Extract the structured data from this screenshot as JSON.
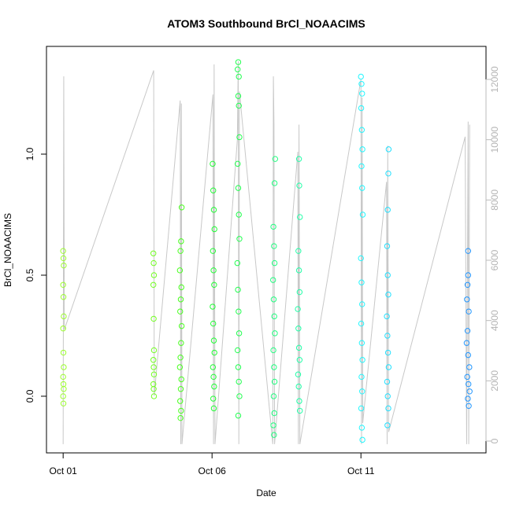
{
  "chart_data": {
    "type": "scatter",
    "title": "ATOM3 Southbound BrCl_NOAACIMS",
    "x_label": "Date",
    "y_label": "BrCl_NOAACIMS",
    "xlim": [
      0.44,
      15.2
    ],
    "xticks": [
      {
        "value": 1,
        "label": "Oct 01"
      },
      {
        "value": 6,
        "label": "Oct 06"
      },
      {
        "value": 11,
        "label": "Oct 11"
      }
    ],
    "ylim": [
      -0.234,
      1.445
    ],
    "yticks": [
      {
        "value": 0,
        "label": "0.0"
      },
      0.5,
      {
        "value": 1,
        "label": "1.0"
      }
    ],
    "y2lim": [
      -391,
      13096
    ],
    "y2ticks": [
      0,
      2000,
      4000,
      6000,
      8000,
      10000,
      12000
    ],
    "grid": false,
    "series": [
      {
        "color": "#9cff2e",
        "x": [
          1.0,
          1.01,
          1.02,
          1.0,
          1.01,
          1.02,
          1.0,
          1.01,
          1.02,
          1.0,
          1.01,
          1.02,
          1.0,
          1.01
        ],
        "values": [
          0.6,
          0.57,
          0.54,
          0.46,
          0.41,
          0.33,
          0.28,
          0.18,
          0.12,
          0.08,
          0.05,
          0.03,
          0.0,
          -0.03
        ]
      },
      {
        "color": "#72ff22",
        "x": [
          4.03,
          4.04,
          4.05,
          4.03,
          4.04,
          4.05,
          4.03,
          4.04,
          4.05,
          4.03,
          4.04,
          4.05
        ],
        "values": [
          0.59,
          0.55,
          0.5,
          0.46,
          0.32,
          0.19,
          0.15,
          0.12,
          0.09,
          0.05,
          0.03,
          0.0
        ]
      },
      {
        "color": "#48ff1e",
        "x": [
          4.98,
          4.96,
          4.94,
          4.92,
          4.97,
          4.95,
          4.93,
          4.98,
          4.96,
          4.94,
          4.92,
          4.97,
          4.95,
          4.93,
          4.96,
          4.94
        ],
        "values": [
          0.78,
          0.64,
          0.6,
          0.52,
          0.45,
          0.4,
          0.35,
          0.29,
          0.22,
          0.16,
          0.12,
          0.07,
          0.03,
          -0.02,
          -0.06,
          -0.09
        ]
      },
      {
        "color": "#22ff36",
        "x": [
          6.02,
          6.04,
          6.06,
          6.08,
          6.03,
          6.05,
          6.07,
          6.02,
          6.04,
          6.06,
          6.08,
          6.03,
          6.05,
          6.07,
          6.04,
          6.06
        ],
        "values": [
          0.96,
          0.85,
          0.77,
          0.69,
          0.6,
          0.52,
          0.46,
          0.37,
          0.3,
          0.23,
          0.18,
          0.12,
          0.08,
          0.04,
          -0.01,
          -0.05
        ]
      },
      {
        "color": "#22ff50",
        "x": [
          6.88,
          6.86,
          6.9,
          6.88,
          6.9,
          6.92,
          6.86,
          6.88,
          6.9,
          6.92,
          6.85,
          6.87,
          6.89,
          6.91,
          6.86,
          6.88,
          6.9,
          6.92,
          6.88
        ],
        "values": [
          1.38,
          1.35,
          1.32,
          1.24,
          1.2,
          1.07,
          0.96,
          0.86,
          0.75,
          0.65,
          0.55,
          0.44,
          0.35,
          0.26,
          0.19,
          0.12,
          0.06,
          0.0,
          -0.08
        ]
      },
      {
        "color": "#22ff80",
        "x": [
          8.12,
          8.1,
          8.06,
          8.08,
          8.1,
          8.05,
          8.07,
          8.09,
          8.11,
          8.06,
          8.08,
          8.1,
          8.07,
          8.09,
          8.06,
          8.08
        ],
        "values": [
          0.98,
          0.88,
          0.7,
          0.62,
          0.55,
          0.48,
          0.4,
          0.33,
          0.26,
          0.19,
          0.12,
          0.06,
          0.0,
          -0.07,
          -0.12,
          -0.16
        ]
      },
      {
        "color": "#22ffa8",
        "x": [
          8.92,
          8.93,
          8.95,
          8.9,
          8.92,
          8.94,
          8.88,
          8.9,
          8.92,
          8.94,
          8.89,
          8.91,
          8.93,
          8.95
        ],
        "values": [
          0.98,
          0.87,
          0.74,
          0.6,
          0.52,
          0.43,
          0.36,
          0.28,
          0.2,
          0.15,
          0.09,
          0.04,
          -0.02,
          -0.06
        ]
      },
      {
        "color": "#22f6ff",
        "x": [
          11.0,
          11.02,
          11.04,
          11.01,
          11.03,
          11.05,
          11.02,
          11.04,
          11.06,
          11.0,
          11.02,
          11.04,
          11.01,
          11.03,
          11.05,
          11.02,
          11.04,
          11.01,
          11.03,
          11.05
        ],
        "values": [
          1.32,
          1.29,
          1.25,
          1.19,
          1.1,
          1.02,
          0.95,
          0.86,
          0.75,
          0.57,
          0.47,
          0.38,
          0.3,
          0.22,
          0.15,
          0.08,
          0.02,
          -0.05,
          -0.13,
          -0.18
        ]
      },
      {
        "color": "#22e0ff",
        "x": [
          11.93,
          11.92,
          11.9,
          11.88,
          11.9,
          11.92,
          11.87,
          11.89,
          11.91,
          11.93,
          11.88,
          11.9,
          11.92,
          11.89
        ],
        "values": [
          1.02,
          0.92,
          0.77,
          0.62,
          0.5,
          0.42,
          0.33,
          0.25,
          0.18,
          0.12,
          0.06,
          0.0,
          -0.05,
          -0.12
        ]
      },
      {
        "color": "#2296ff",
        "x": [
          14.6,
          14.6,
          14.58,
          14.56,
          14.62,
          14.58,
          14.55,
          14.6,
          14.64,
          14.57,
          14.61,
          14.65,
          14.59,
          14.62
        ],
        "values": [
          0.6,
          0.5,
          0.46,
          0.4,
          0.35,
          0.27,
          0.22,
          0.17,
          0.12,
          0.08,
          0.05,
          0.02,
          -0.01,
          -0.04
        ]
      },
      {
        "type": "line",
        "axis": "y2",
        "color": "#c8c8c8",
        "x": [
          1.0,
          1.02,
          1.04,
          4.04,
          4.06,
          4.93,
          4.95,
          4.97,
          4.99,
          6.03,
          6.05,
          6.07,
          6.1,
          6.85,
          6.88,
          6.9,
          6.92,
          8.04,
          8.06,
          8.08,
          8.1,
          8.88,
          8.9,
          8.92,
          8.95,
          11.0,
          11.02,
          11.04,
          11.06,
          11.86,
          11.88,
          11.9,
          11.93,
          14.5,
          14.55,
          14.6,
          14.62,
          14.65
        ],
        "values": [
          -100,
          12100,
          3700,
          12300,
          1500,
          11300,
          -100,
          11200,
          -100,
          11500,
          -100,
          12500,
          -100,
          10000,
          12600,
          -100,
          11600,
          -100,
          12100,
          10500,
          -100,
          9600,
          -100,
          10500,
          -100,
          12000,
          -100,
          11400,
          600,
          8600,
          -100,
          9800,
          300,
          10100,
          -100,
          10600,
          -100,
          10500
        ]
      }
    ]
  }
}
